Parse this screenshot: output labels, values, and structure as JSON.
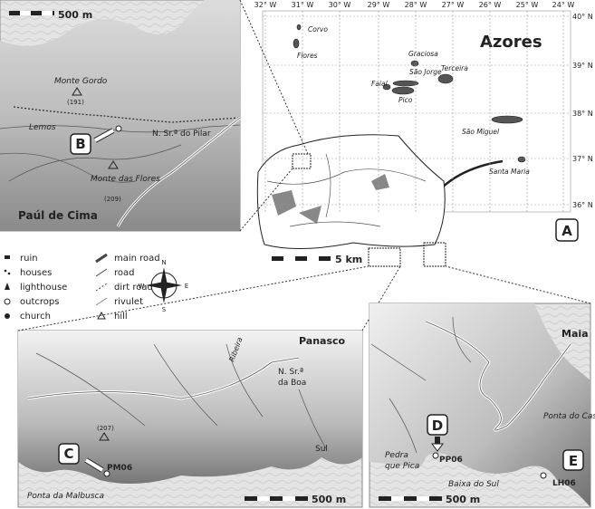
{
  "panel_b": {
    "scale": "500 m",
    "monte_gordo": "Monte Gordo",
    "monte_gordo_height": "(191)",
    "lemos": "Lemos",
    "church": "N. Sr.ª do Pilar",
    "label": "B",
    "monte_flores": "Monte das Flores",
    "monte_flores_height": "(209)",
    "village": "Paúl de Cima"
  },
  "panel_a": {
    "title": "Azores",
    "label": "A",
    "scale": "5 km",
    "longitudes": [
      "32° W",
      "31° W",
      "30° W",
      "29° W",
      "28° W",
      "27° W",
      "26° W",
      "25° W",
      "24° W"
    ],
    "latitudes": [
      "40° N",
      "39° N",
      "38° N",
      "37° N",
      "36° N"
    ],
    "islands": [
      "Corvo",
      "Flores",
      "Graciosa",
      "São Jorge",
      "Terceira",
      "Faial",
      "Pico",
      "São Miguel",
      "Santa Maria"
    ]
  },
  "legend": {
    "items": [
      "ruin",
      "houses",
      "lighthouse",
      "outcrops",
      "church",
      "main road",
      "road",
      "dirt road",
      "rivulet",
      "hill"
    ],
    "compass": [
      "N",
      "E",
      "S",
      "W"
    ]
  },
  "panel_c": {
    "village": "Panasco",
    "church_1": "N. Sr.ª",
    "church_2": "da Boa",
    "stream": "Ribeira",
    "height": "(207)",
    "label": "C",
    "site": "PM06",
    "sul": "Sul",
    "point": "Ponta da Malbusca",
    "scale": "500 m"
  },
  "panel_de": {
    "village": "Maia",
    "label_d": "D",
    "site_d": "PP06",
    "point": "Ponta do Castelo",
    "rock_1": "Pedra",
    "rock_2": "que Pica",
    "shoal": "Baixa do Sul",
    "label_e": "E",
    "site_e": "LH06",
    "scale": "500 m"
  }
}
